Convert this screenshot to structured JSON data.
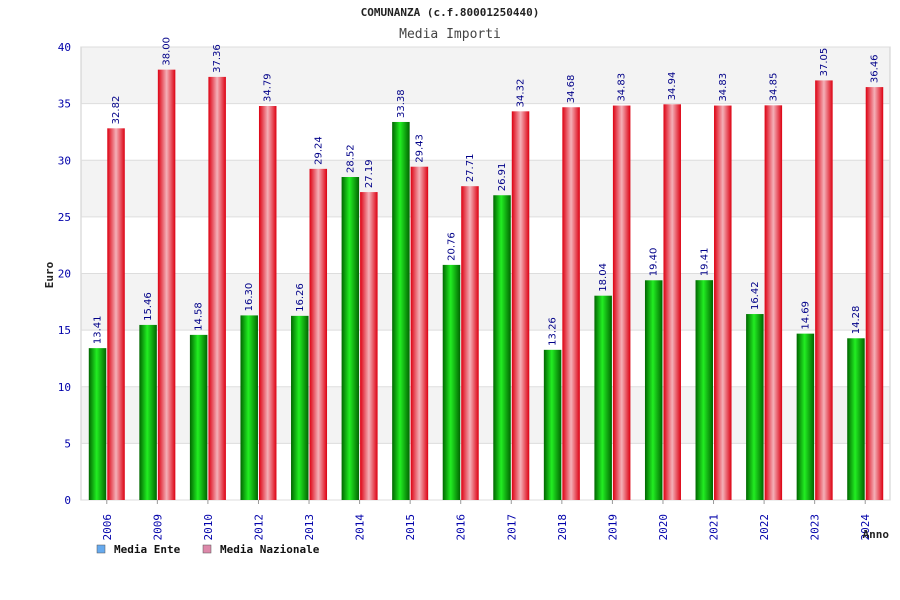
{
  "chart_data": {
    "type": "bar",
    "title": "COMUNANZA (c.f.80001250440)",
    "subtitle": "Media Importi",
    "xlabel": "Anno",
    "ylabel": "Euro",
    "ylim": [
      0,
      40
    ],
    "yticks": [
      "0",
      "5",
      "10",
      "15",
      "20",
      "25",
      "30",
      "35",
      "40"
    ],
    "categories": [
      "2006",
      "2009",
      "2010",
      "2012",
      "2013",
      "2014",
      "2015",
      "2016",
      "2017",
      "2018",
      "2019",
      "2020",
      "2021",
      "2022",
      "2023",
      "2024"
    ],
    "series": [
      {
        "name": "Media Ente",
        "values": [
          13.41,
          15.46,
          14.58,
          16.3,
          16.26,
          28.52,
          33.38,
          20.76,
          26.91,
          13.26,
          18.04,
          19.4,
          19.41,
          16.42,
          14.69,
          14.28
        ],
        "labels": [
          "13.41",
          "15.46",
          "14.58",
          "16.30",
          "16.26",
          "28.52",
          "33.38",
          "20.76",
          "26.91",
          "13.26",
          "18.04",
          "19.40",
          "19.41",
          "16.42",
          "14.69",
          "14.28"
        ],
        "color": "#00bb00",
        "legend_color": "#66aaee"
      },
      {
        "name": "Media Nazionale",
        "values": [
          32.82,
          38.0,
          37.36,
          34.79,
          29.24,
          27.19,
          29.43,
          27.71,
          34.32,
          34.68,
          34.83,
          34.94,
          34.83,
          34.85,
          37.05,
          36.46
        ],
        "labels": [
          "32.82",
          "38.00",
          "37.36",
          "34.79",
          "29.24",
          "27.19",
          "29.43",
          "27.71",
          "34.32",
          "34.68",
          "34.83",
          "34.94",
          "34.83",
          "34.85",
          "37.05",
          "36.46"
        ],
        "color": "#ee1122",
        "legend_color": "#dd88aa"
      }
    ],
    "grid": true,
    "legend_position": "bottom-left"
  }
}
